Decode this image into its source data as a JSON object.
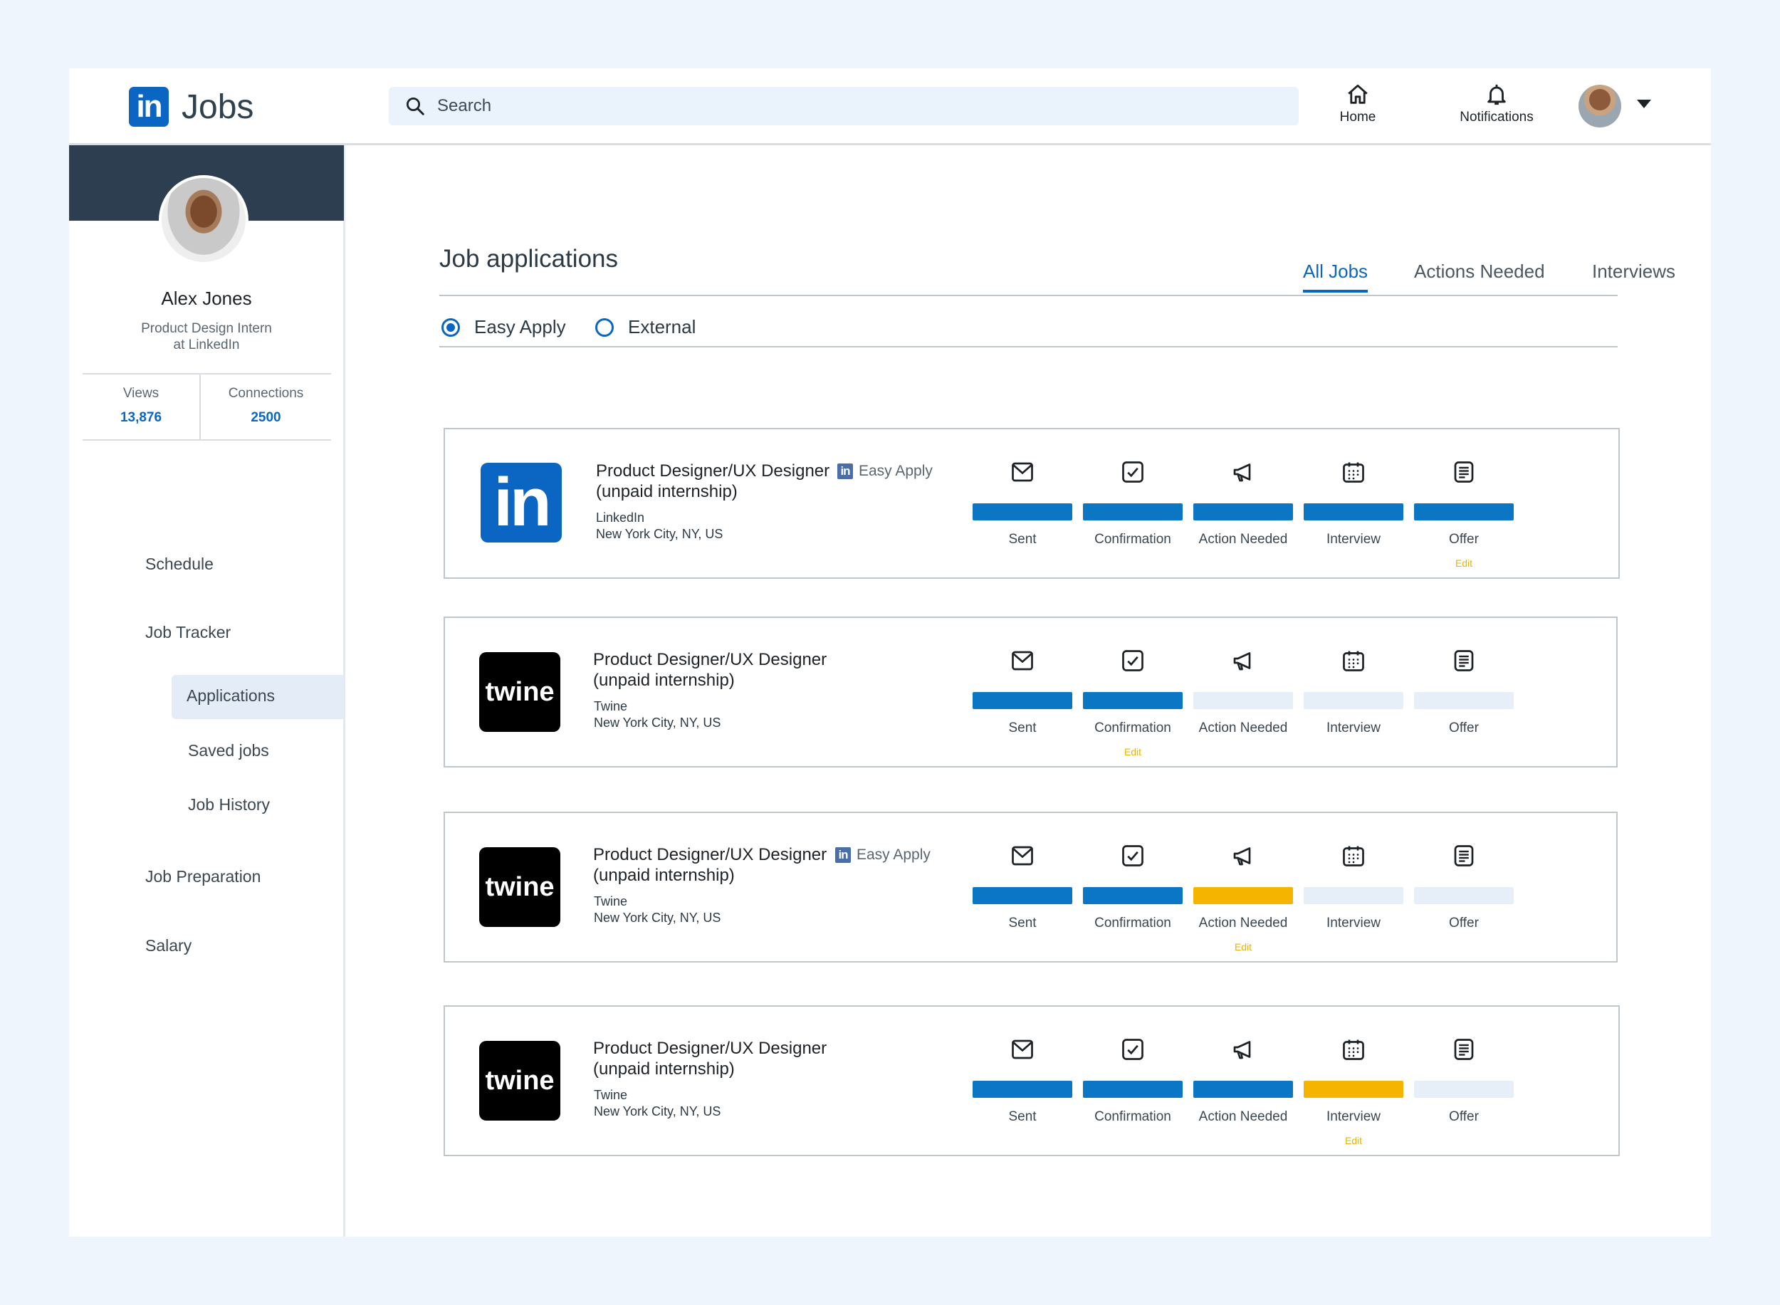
{
  "app": {
    "brand": "in",
    "title": "Jobs"
  },
  "search": {
    "placeholder": "Search",
    "value": ""
  },
  "nav": {
    "home": "Home",
    "notifications": "Notifications"
  },
  "profile": {
    "name": "Alex Jones",
    "role_line1": "Product Design Intern",
    "role_line2": "at LinkedIn",
    "views_label": "Views",
    "views_value": "13,876",
    "connections_label": "Connections",
    "connections_value": "2500"
  },
  "sidebar": {
    "schedule": "Schedule",
    "job_tracker": "Job Tracker",
    "applications": "Applications",
    "saved_jobs": "Saved jobs",
    "job_history": "Job History",
    "job_preparation": "Job Preparation",
    "salary": "Salary"
  },
  "main": {
    "title": "Job applications",
    "tabs": [
      "All Jobs",
      "Actions Needed",
      "Interviews"
    ],
    "filters": {
      "easy_apply": "Easy Apply",
      "external": "External",
      "selected": "Easy Apply"
    }
  },
  "stages": [
    "Sent",
    "Confirmation",
    "Action Needed",
    "Interview",
    "Offer"
  ],
  "edit_label": "Edit",
  "easy_apply_badge": "Easy Apply",
  "jobs": [
    {
      "title_line1": "Product Designer/UX Designer",
      "title_line2": "(unpaid internship)",
      "company": "LinkedIn",
      "location": "New York City, NY, US",
      "logo": "in",
      "easy_apply": true,
      "status": [
        "done",
        "done",
        "done",
        "done",
        "done"
      ],
      "edit_stage": 4
    },
    {
      "title_line1": "Product Designer/UX Designer",
      "title_line2": "(unpaid internship)",
      "company": "Twine",
      "location": "New York City, NY, US",
      "logo": "twine",
      "easy_apply": false,
      "status": [
        "done",
        "done",
        "todo",
        "todo",
        "todo"
      ],
      "edit_stage": 1
    },
    {
      "title_line1": "Product Designer/UX Designer",
      "title_line2": "(unpaid internship)",
      "company": "Twine",
      "location": "New York City, NY, US",
      "logo": "twine",
      "easy_apply": true,
      "status": [
        "done",
        "done",
        "warn",
        "todo",
        "todo"
      ],
      "edit_stage": 2
    },
    {
      "title_line1": "Product Designer/UX Designer",
      "title_line2": "(unpaid internship)",
      "company": "Twine",
      "location": "New York City, NY, US",
      "logo": "twine",
      "easy_apply": false,
      "status": [
        "done",
        "done",
        "done",
        "warn",
        "todo"
      ],
      "edit_stage": 3
    }
  ],
  "colors": {
    "accent": "#0a66c2",
    "done": "#0a76c4",
    "warn": "#f5b400",
    "todo": "#e6eef7",
    "edit": "#e8b400"
  },
  "icons": {
    "stages": [
      "mail-icon",
      "checkbox-icon",
      "megaphone-icon",
      "calendar-icon",
      "document-icon"
    ]
  }
}
